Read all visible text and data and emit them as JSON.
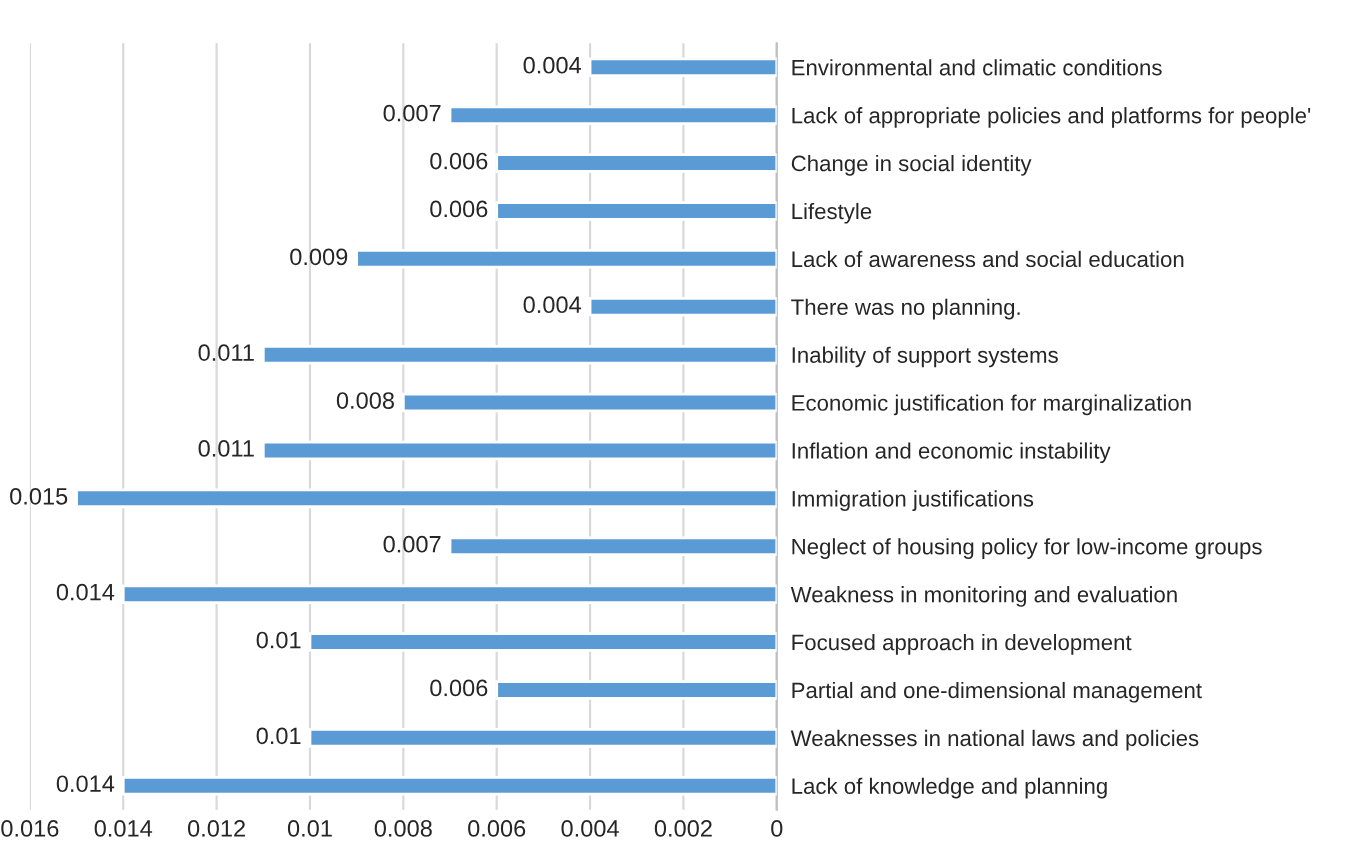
{
  "chart_data": {
    "type": "bar",
    "orientation": "horizontal",
    "categories": [
      "Environmental and climatic conditions",
      "Lack of appropriate policies and platforms for people'",
      "Change in social identity",
      "Lifestyle",
      "Lack of awareness and social education",
      "There was no planning.",
      "Inability of support systems",
      "Economic justification for marginalization",
      "Inflation and economic instability",
      "Immigration justifications",
      "Neglect of housing policy for low-income groups",
      "Weakness in monitoring and evaluation",
      "Focused approach in development",
      "Partial and one-dimensional management",
      "Weaknesses in national laws and policies",
      "Lack of knowledge and planning"
    ],
    "values": [
      0.004,
      0.007,
      0.006,
      0.006,
      0.009,
      0.004,
      0.011,
      0.008,
      0.011,
      0.015,
      0.007,
      0.014,
      0.01,
      0.006,
      0.01,
      0.014
    ],
    "color": "#5b9bd5",
    "xlim": [
      0.016,
      0
    ],
    "xticks": [
      0.016,
      0.014,
      0.012,
      0.01,
      0.008,
      0.006,
      0.004,
      0.002,
      0
    ],
    "grid": "x",
    "data_labels": true
  }
}
